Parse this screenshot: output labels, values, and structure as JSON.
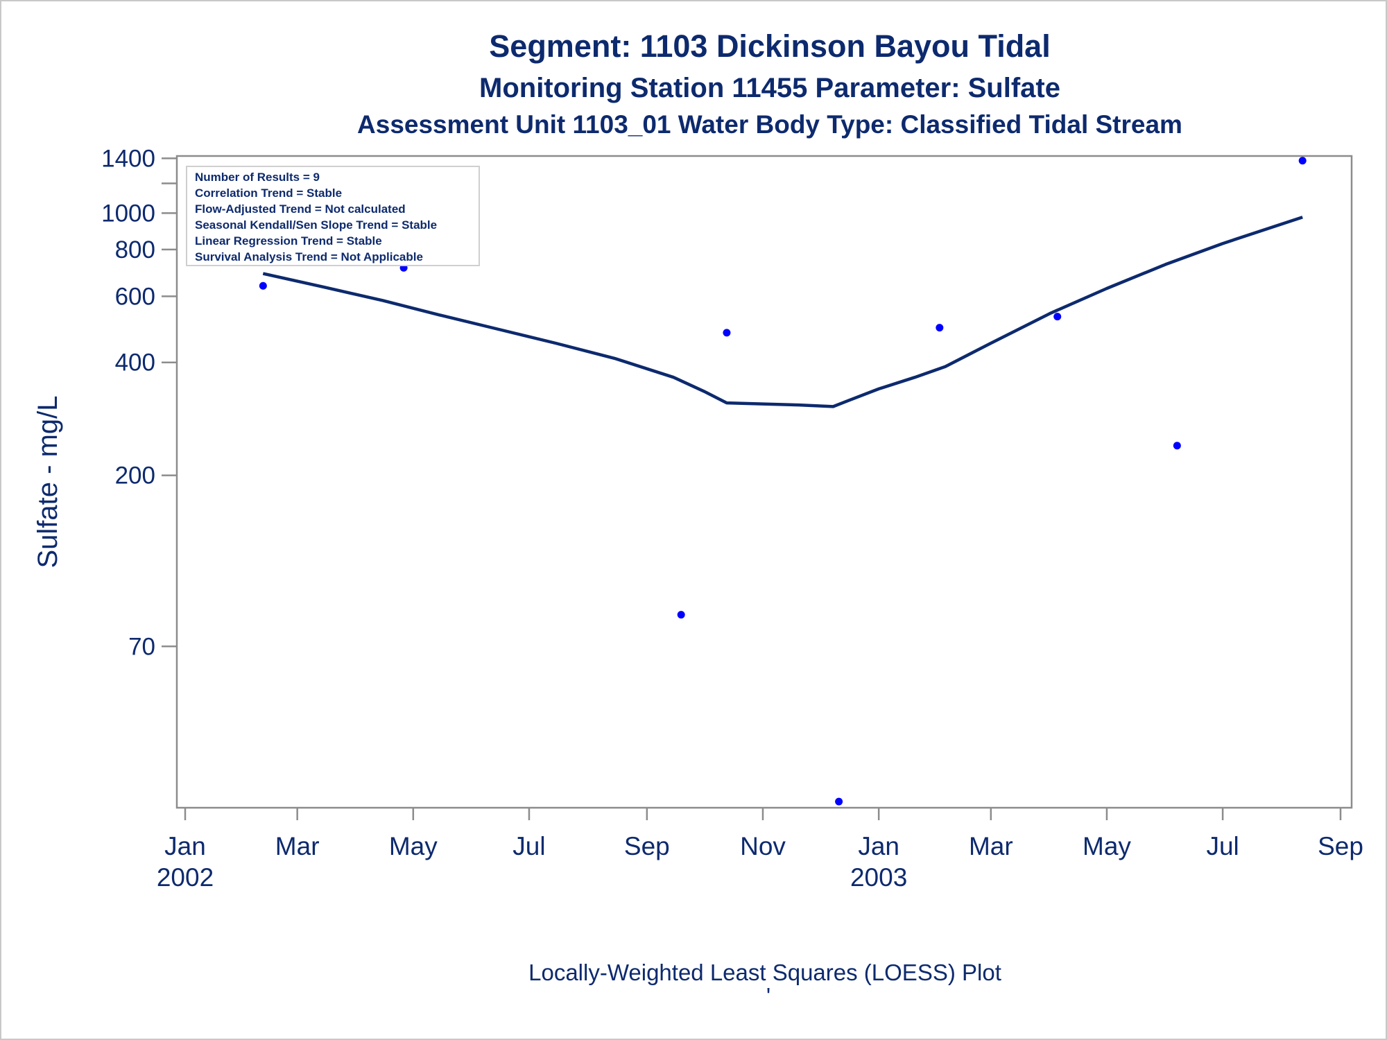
{
  "colors": {
    "text": "#0d2a6e",
    "line": "#0d2a6e",
    "points": "#0000ff",
    "axis": "#8c8c8c"
  },
  "chart_data": {
    "type": "scatter",
    "title": "Segment: 1103  Dickinson Bayou Tidal",
    "subtitle": "Monitoring Station 11455 Parameter: Sulfate",
    "subtitle2": "Assessment Unit 1103_01   Water Body Type: Classified Tidal Stream",
    "xlabel": "",
    "ylabel": "Sulfate - mg/L",
    "footnote": "Locally-Weighted Least Squares (LOESS) Plot",
    "footnote_mark": "'",
    "y_scale": "log",
    "ylim": [
      26,
      1420
    ],
    "xlim": [
      "2002-01-01",
      "2003-09-01"
    ],
    "y_ticks": [
      {
        "value": 1400,
        "label": "1400"
      },
      {
        "value": 1200,
        "label": ""
      },
      {
        "value": 1000,
        "label": "1000"
      },
      {
        "value": 800,
        "label": "800"
      },
      {
        "value": 600,
        "label": "600"
      },
      {
        "value": 400,
        "label": "400"
      },
      {
        "value": 200,
        "label": "200"
      },
      {
        "value": 70,
        "label": "70"
      }
    ],
    "x_ticks": [
      {
        "date": "2002-01-01",
        "label": "Jan",
        "year": "2002"
      },
      {
        "date": "2002-03-01",
        "label": "Mar",
        "year": ""
      },
      {
        "date": "2002-05-01",
        "label": "May",
        "year": ""
      },
      {
        "date": "2002-07-01",
        "label": "Jul",
        "year": ""
      },
      {
        "date": "2002-09-01",
        "label": "Sep",
        "year": ""
      },
      {
        "date": "2002-11-01",
        "label": "Nov",
        "year": ""
      },
      {
        "date": "2003-01-01",
        "label": "Jan",
        "year": "2003"
      },
      {
        "date": "2003-03-01",
        "label": "Mar",
        "year": ""
      },
      {
        "date": "2003-05-01",
        "label": "May",
        "year": ""
      },
      {
        "date": "2003-07-01",
        "label": "Jul",
        "year": ""
      },
      {
        "date": "2003-09-01",
        "label": "Sep",
        "year": ""
      }
    ],
    "points": [
      {
        "x": "2002-02-11",
        "y": 640
      },
      {
        "x": "2002-04-26",
        "y": 715
      },
      {
        "x": "2002-09-19",
        "y": 85
      },
      {
        "x": "2002-10-13",
        "y": 480
      },
      {
        "x": "2002-12-11",
        "y": 27
      },
      {
        "x": "2003-02-02",
        "y": 495
      },
      {
        "x": "2003-04-05",
        "y": 530
      },
      {
        "x": "2003-06-07",
        "y": 240
      },
      {
        "x": "2003-08-12",
        "y": 1380
      }
    ],
    "loess": [
      {
        "x": "2002-02-11",
        "y": 690
      },
      {
        "x": "2002-03-15",
        "y": 635
      },
      {
        "x": "2002-04-15",
        "y": 585
      },
      {
        "x": "2002-05-15",
        "y": 535
      },
      {
        "x": "2002-06-15",
        "y": 490
      },
      {
        "x": "2002-07-15",
        "y": 450
      },
      {
        "x": "2002-08-15",
        "y": 410
      },
      {
        "x": "2002-09-15",
        "y": 365
      },
      {
        "x": "2002-10-01",
        "y": 335
      },
      {
        "x": "2002-10-13",
        "y": 312
      },
      {
        "x": "2002-11-01",
        "y": 310
      },
      {
        "x": "2002-11-20",
        "y": 308
      },
      {
        "x": "2002-12-08",
        "y": 305
      },
      {
        "x": "2002-12-15",
        "y": 315
      },
      {
        "x": "2003-01-01",
        "y": 340
      },
      {
        "x": "2003-01-20",
        "y": 365
      },
      {
        "x": "2003-02-05",
        "y": 390
      },
      {
        "x": "2003-03-01",
        "y": 450
      },
      {
        "x": "2003-04-01",
        "y": 540
      },
      {
        "x": "2003-05-01",
        "y": 630
      },
      {
        "x": "2003-06-01",
        "y": 730
      },
      {
        "x": "2003-07-01",
        "y": 830
      },
      {
        "x": "2003-08-12",
        "y": 975
      }
    ],
    "legend": {
      "placement": "top-left",
      "lines": [
        "Number of Results = 9",
        "Correlation Trend = Stable",
        "Flow-Adjusted Trend = Not calculated",
        "Seasonal Kendall/Sen Slope Trend = Stable",
        "Linear Regression Trend = Stable",
        "Survival Analysis Trend = Not Applicable"
      ]
    }
  }
}
